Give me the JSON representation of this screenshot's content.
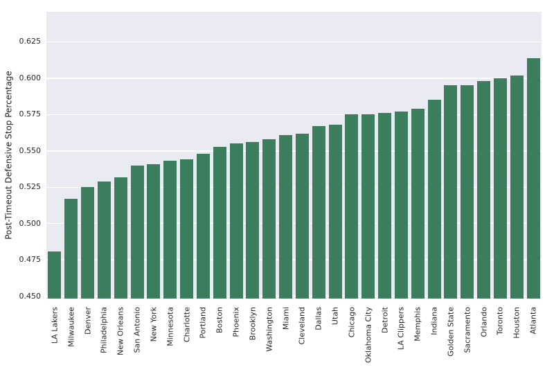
{
  "chart_data": {
    "type": "bar",
    "title": "",
    "xlabel": "",
    "ylabel": "Post-Timeout Defensive Stop Percentage",
    "categories": [
      "LA Lakers",
      "Milwaukee",
      "Denver",
      "Philadelphia",
      "New Orleans",
      "San Antonio",
      "New York",
      "Minnesota",
      "Charlotte",
      "Portland",
      "Boston",
      "Phoenix",
      "Brooklyn",
      "Washington",
      "Miami",
      "Cleveland",
      "Dallas",
      "Utah",
      "Chicago",
      "Oklahoma City",
      "Detroit",
      "LA Clippers",
      "Memphis",
      "Indiana",
      "Golden State",
      "Sacramento",
      "Orlando",
      "Toronto",
      "Houston",
      "Atlanta"
    ],
    "values": [
      0.481,
      0.517,
      0.525,
      0.529,
      0.532,
      0.54,
      0.541,
      0.543,
      0.544,
      0.548,
      0.553,
      0.555,
      0.556,
      0.558,
      0.561,
      0.562,
      0.567,
      0.568,
      0.575,
      0.575,
      0.576,
      0.577,
      0.579,
      0.585,
      0.595,
      0.595,
      0.598,
      0.6,
      0.602,
      0.614
    ],
    "yticks": [
      0.45,
      0.475,
      0.5,
      0.525,
      0.55,
      0.575,
      0.6,
      0.625
    ],
    "ytick_labels": [
      "0.450",
      "0.475",
      "0.500",
      "0.525",
      "0.550",
      "0.575",
      "0.600",
      "0.625"
    ],
    "ylim": [
      0.4484,
      0.6457
    ],
    "grid": true,
    "legend": null,
    "x_tick_rotation": 90,
    "bar_color": "#3b7d5c",
    "plot_bg_color": "#eaeaf2",
    "grid_color": "#ffffff",
    "text_color": "#262626",
    "figure_bg_color": "#ffffff"
  }
}
